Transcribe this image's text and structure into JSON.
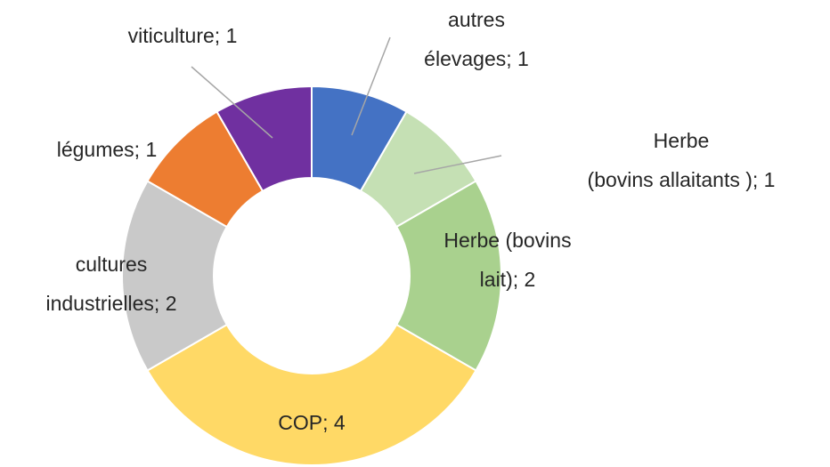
{
  "chart_data": {
    "type": "donut",
    "categories": [
      "autres élevages",
      "Herbe (bovins allaitants )",
      "Herbe (bovins lait)",
      "COP",
      "cultures industrielles",
      "légumes",
      "viticulture"
    ],
    "values": [
      1,
      1,
      2,
      4,
      2,
      1,
      1
    ],
    "value_labels": [
      "autres\nélevages; 1",
      "Herbe\n(bovins allaitants ); 1",
      "Herbe (bovins\nlait); 2",
      "COP; 4",
      "cultures\nindustrielles; 2",
      "légumes; 1",
      "viticulture; 1"
    ],
    "colors": [
      "#4472c4",
      "#c5e0b4",
      "#a9d18e",
      "#ffd966",
      "#c9c9c9",
      "#ed7d31",
      "#7030a0"
    ]
  }
}
